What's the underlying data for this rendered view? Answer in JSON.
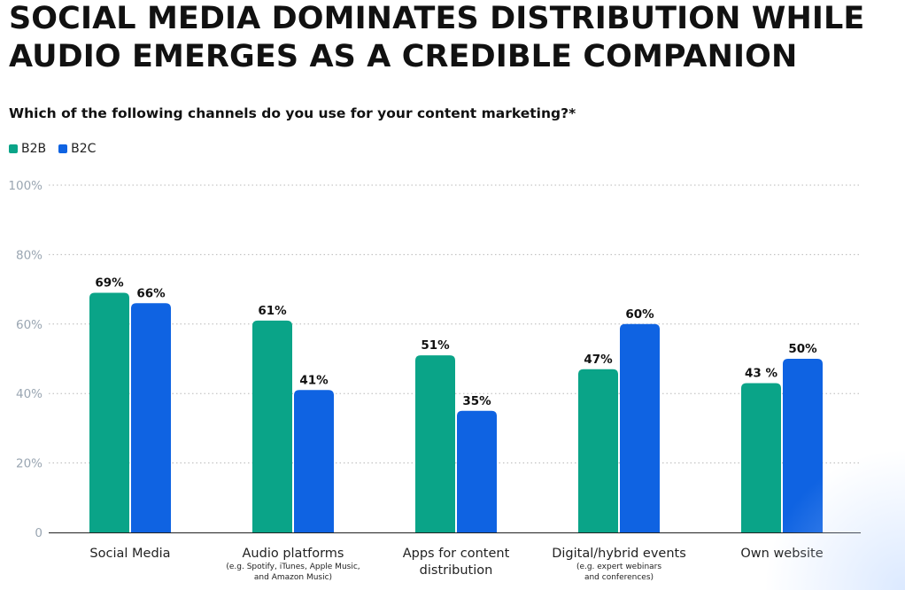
{
  "title_line1": "SOCIAL MEDIA DOMINATES DISTRIBUTION WHILE",
  "title_line2": "AUDIO EMERGES AS A CREDIBLE COMPANION",
  "subtitle": "Which of the following channels do you use for your content marketing?*",
  "colors": {
    "b2b": "#0aa488",
    "b2c": "#0f63e2",
    "grid": "#b8b8b8",
    "tick_label": "#9aa6b2"
  },
  "chart_data": {
    "type": "bar",
    "categories": [
      [
        "Social Media"
      ],
      [
        "Audio platforms"
      ],
      [
        "Apps for content",
        "distribution"
      ],
      [
        "Digital/hybrid events"
      ],
      [
        "Own website"
      ]
    ],
    "category_notes": [
      [],
      [
        "(e.g. Spotify, iTunes, Apple Music,",
        "and Amazon Music)"
      ],
      [],
      [
        "(e.g. expert webinars",
        "and conferences)"
      ],
      []
    ],
    "series": [
      {
        "name": "B2B",
        "values": [
          69,
          61,
          51,
          47,
          43
        ],
        "labels": [
          "69%",
          "61%",
          "51%",
          "47%",
          "43 %"
        ]
      },
      {
        "name": "B2C",
        "values": [
          66,
          41,
          35,
          60,
          50
        ],
        "labels": [
          "66%",
          "41%",
          "35%",
          "60%",
          "50%"
        ]
      }
    ],
    "ylim": [
      0,
      100
    ],
    "yticks": [
      {
        "value": 0,
        "label": "0"
      },
      {
        "value": 20,
        "label": "20%"
      },
      {
        "value": 40,
        "label": "40%"
      },
      {
        "value": 60,
        "label": "60%"
      },
      {
        "value": 80,
        "label": "80%"
      },
      {
        "value": 100,
        "label": "100%"
      }
    ],
    "grid": true,
    "legend": "top-left"
  }
}
